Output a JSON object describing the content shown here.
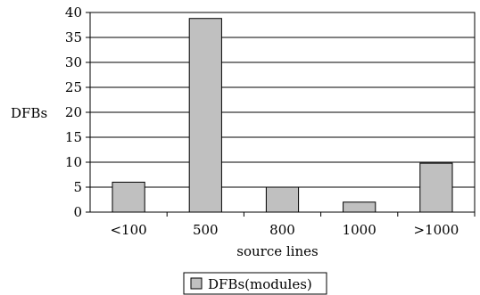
{
  "chart_data": {
    "type": "bar",
    "categories": [
      "<100",
      "500",
      "800",
      "1000",
      ">1000"
    ],
    "series": [
      {
        "name": "DFBs(modules)",
        "values": [
          6,
          38.8,
          5,
          2,
          9.8
        ]
      }
    ],
    "xlabel": "source lines",
    "ylabel": "DFBs",
    "ylim": [
      0,
      40
    ],
    "yticks": [
      0,
      5,
      10,
      15,
      20,
      25,
      30,
      35,
      40
    ],
    "grid": true,
    "legend": "bottom-center"
  },
  "colors": {
    "bar_fill": "#c0c0c0",
    "bar_stroke": "#000000",
    "grid": "#000000"
  }
}
